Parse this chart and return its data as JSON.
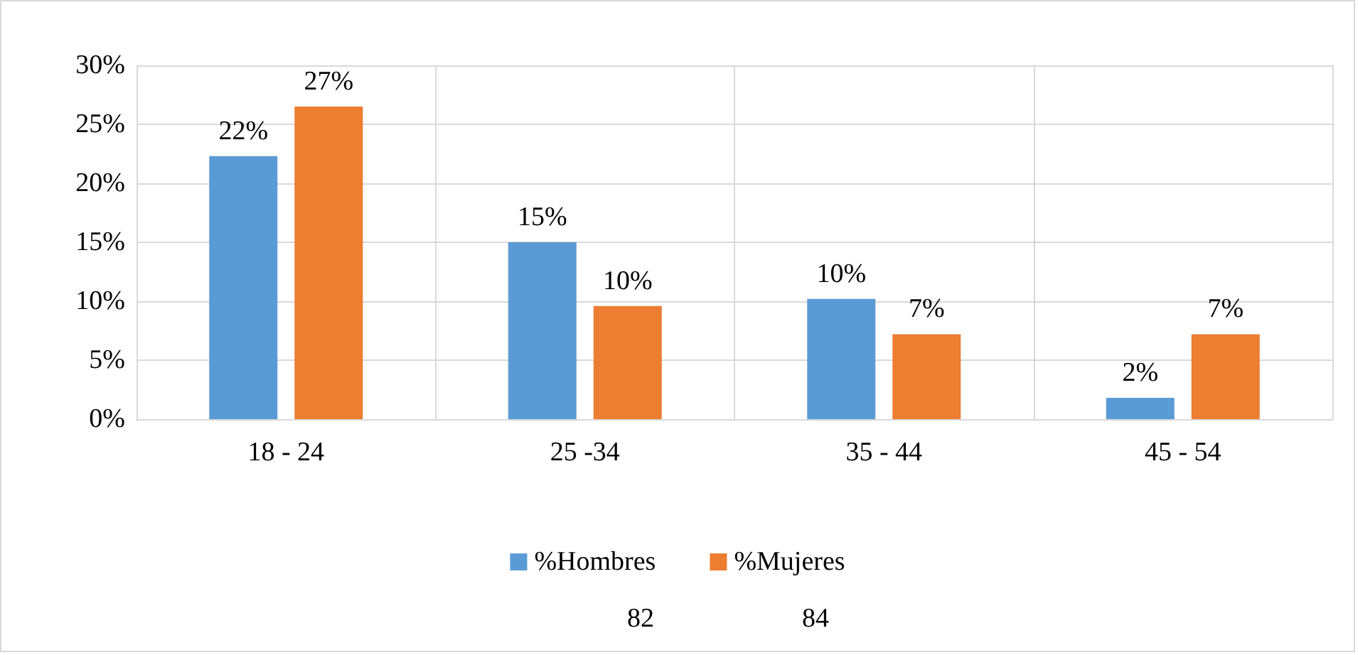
{
  "chart_data": {
    "type": "bar",
    "categories": [
      "18 - 24",
      "25 -34",
      "35 - 44",
      "45 - 54"
    ],
    "series": [
      {
        "name": "%Hombres",
        "color": "#5b9bd5",
        "values": [
          22.3,
          15,
          10.2,
          1.8
        ],
        "value_labels": [
          "22%",
          "15%",
          "10%",
          "2%"
        ]
      },
      {
        "name": "%Mujeres",
        "color": "#ed7d31",
        "values": [
          26.5,
          9.6,
          7.2,
          7.2
        ],
        "value_labels": [
          "27%",
          "10%",
          "7%",
          "7%"
        ]
      }
    ],
    "ylim": [
      0,
      30
    ],
    "yticks": [
      {
        "value": 0,
        "label": "0%"
      },
      {
        "value": 5,
        "label": "5%"
      },
      {
        "value": 10,
        "label": "10%"
      },
      {
        "value": 15,
        "label": "15%"
      },
      {
        "value": 20,
        "label": "20%"
      },
      {
        "value": 25,
        "label": "25%"
      },
      {
        "value": 30,
        "label": "30%"
      }
    ],
    "grid": true,
    "legend": "bottom",
    "annotations": [
      "82",
      "84"
    ]
  }
}
